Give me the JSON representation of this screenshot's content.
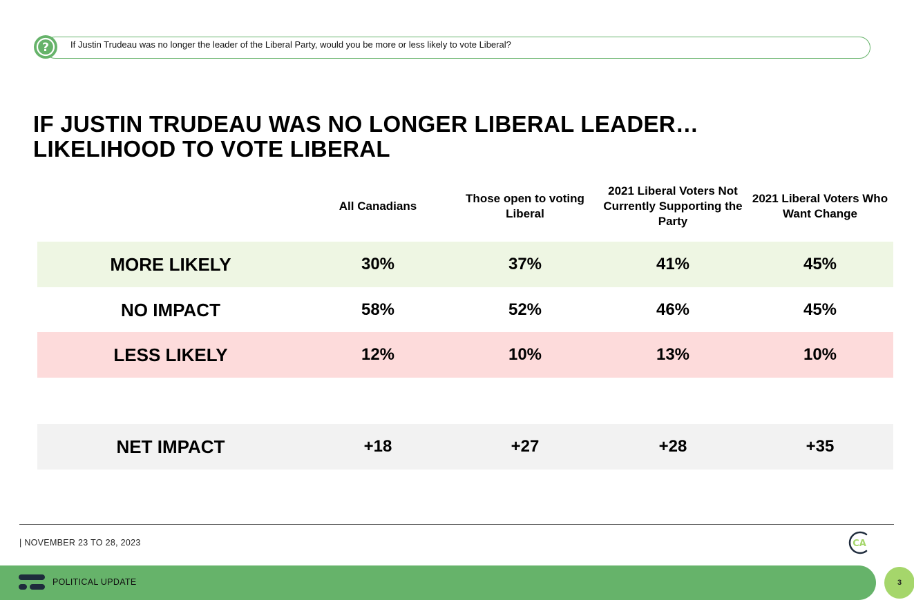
{
  "question": "If Justin Trudeau was no longer the leader of the Liberal Party, would you be more or less likely to vote Liberal?",
  "title_line1": "IF JUSTIN TRUDEAU WAS NO LONGER LIBERAL LEADER…",
  "title_line2": "LIKELIHOOD TO VOTE LIBERAL",
  "colors": {
    "more_likely_row": "#eef6e3",
    "no_impact_row": "#ffffff",
    "less_likely_row": "#fddbdb",
    "net_impact_row": "#f2f2f2",
    "brand_green": "#66b36a",
    "light_green": "#a5d66b",
    "dark_navy": "#1e2b3c"
  },
  "icons": {
    "question": "question-mark-icon",
    "ca_logo": "ca-logo-icon",
    "footer_logo": "brand-logo-icon"
  },
  "chart_data": {
    "type": "table",
    "columns": [
      "All Canadians",
      "Those open to voting Liberal",
      "2021 Liberal Voters Not Currently Supporting the Party",
      "2021 Liberal Voters Who Want Change"
    ],
    "rows": [
      {
        "label": "MORE LIKELY",
        "values": [
          "30%",
          "37%",
          "41%",
          "45%"
        ]
      },
      {
        "label": "NO IMPACT",
        "values": [
          "58%",
          "52%",
          "46%",
          "45%"
        ]
      },
      {
        "label": "LESS LIKELY",
        "values": [
          "12%",
          "10%",
          "13%",
          "10%"
        ]
      },
      {
        "label": "NET IMPACT",
        "values": [
          "+18",
          "+27",
          "+28",
          "+35"
        ]
      }
    ]
  },
  "footer": {
    "date": "| NOVEMBER 23 TO 28, 2023",
    "ca_logo_text": "CA",
    "section": "POLITICAL UPDATE",
    "page_number": "3"
  }
}
